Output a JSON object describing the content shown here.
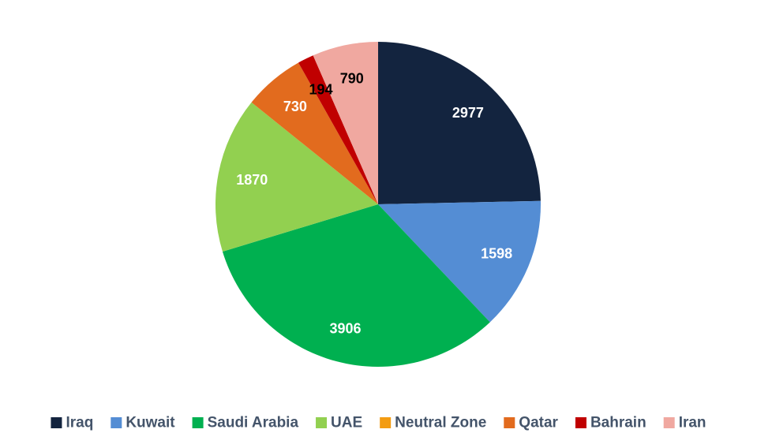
{
  "chart_data": {
    "type": "pie",
    "categories": [
      "Iraq",
      "Kuwait",
      "Saudi Arabia",
      "UAE",
      "Neutral Zone",
      "Qatar",
      "Bahrain",
      "Iran"
    ],
    "values": [
      2977,
      1598,
      3906,
      1870,
      0,
      730,
      194,
      790
    ],
    "colors": [
      "#13243f",
      "#548dd4",
      "#00b050",
      "#92d050",
      "#f39c12",
      "#e26b1e",
      "#c00000",
      "#f0a8a0"
    ],
    "label_colors": [
      "#ffffff",
      "#ffffff",
      "#ffffff",
      "#ffffff",
      "#ffffff",
      "#ffffff",
      "#000000",
      "#000000"
    ],
    "data_labels": [
      "2977",
      "1598",
      "3906",
      "1870",
      "",
      "730",
      "194",
      "790"
    ],
    "start_angle": "12 o'clock",
    "direction": "clockwise",
    "legend_position": "bottom"
  }
}
